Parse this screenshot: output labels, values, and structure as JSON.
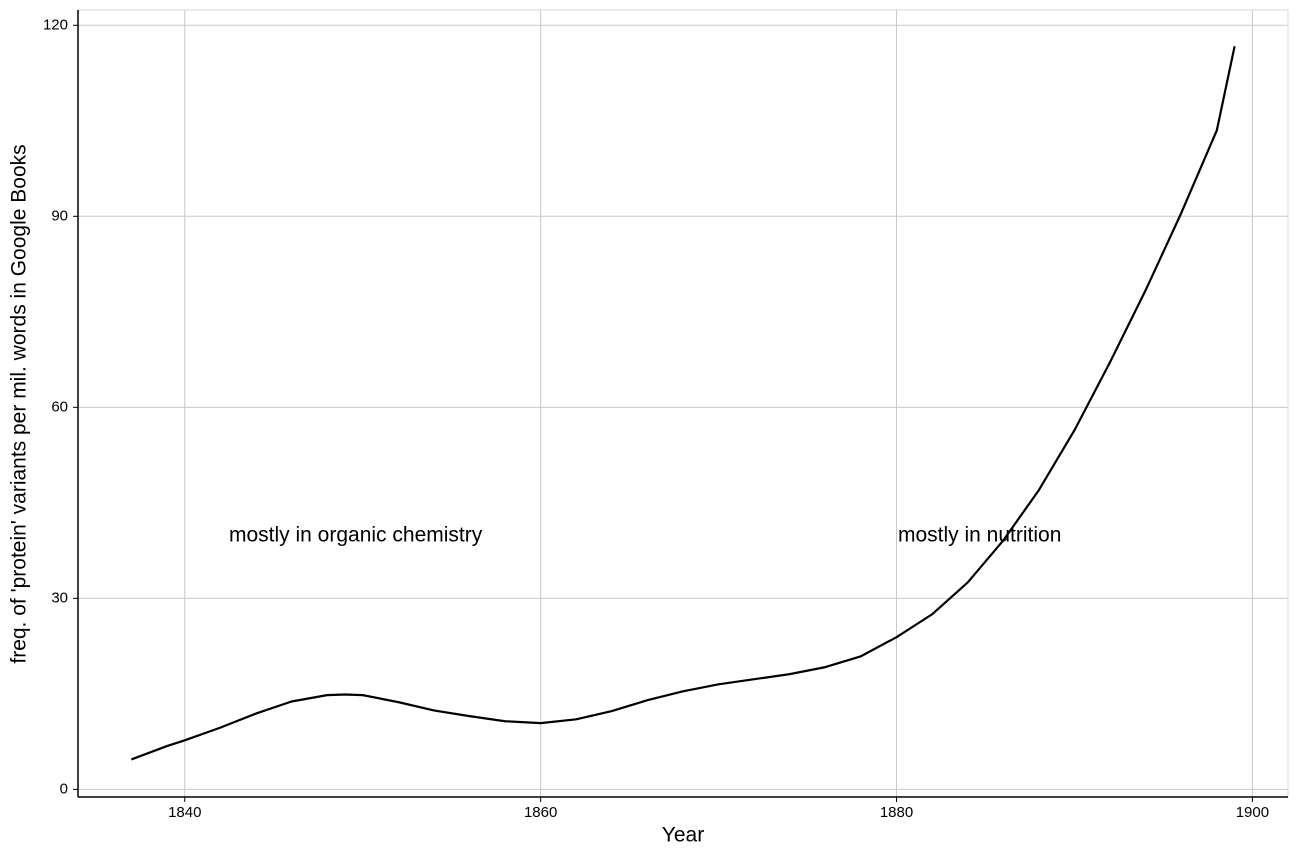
{
  "chart_data": {
    "type": "line",
    "xlabel": "Year",
    "ylabel": "freq. of 'protein' variants per mil. words in Google Books",
    "x": [
      1837,
      1839,
      1840,
      1842,
      1844,
      1846,
      1848,
      1849,
      1850,
      1852,
      1854,
      1856,
      1858,
      1860,
      1862,
      1864,
      1866,
      1868,
      1870,
      1872,
      1874,
      1876,
      1878,
      1880,
      1882,
      1884,
      1886,
      1888,
      1890,
      1892,
      1894,
      1896,
      1898,
      1899
    ],
    "series": [
      {
        "color": "#000000",
        "values": [
          4.7,
          6.8,
          7.7,
          9.7,
          11.9,
          13.8,
          14.8,
          14.9,
          14.8,
          13.7,
          12.4,
          11.5,
          10.7,
          10.4,
          11.0,
          12.3,
          14.0,
          15.4,
          16.5,
          17.3,
          18.1,
          19.2,
          20.9,
          23.9,
          27.5,
          32.5,
          39.1,
          47.0,
          56.4,
          67.1,
          78.4,
          90.5,
          103.5,
          116.7
        ]
      }
    ],
    "annotations": [
      "mostly in organic chemistry",
      "mostly in nutrition"
    ],
    "xlim": [
      1834,
      1902
    ],
    "xticks": [
      1840,
      1860,
      1880,
      1900
    ],
    "ylim": [
      -1.2,
      122.4
    ],
    "yticks": [
      0,
      30,
      60,
      90,
      120
    ],
    "grid": true
  }
}
